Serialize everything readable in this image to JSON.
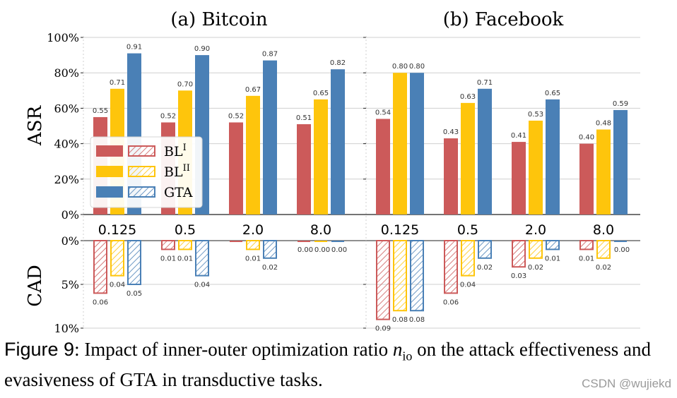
{
  "colors": {
    "bl1": "#cc5a5a",
    "bl2": "#fec50c",
    "gta": "#4a80b6",
    "grid": "#cfcfcf",
    "axis": "#222222"
  },
  "chart_data": [
    {
      "type": "bar",
      "panel": "asr",
      "title": "(a) Bitcoin",
      "ylabel": "ASR",
      "categories": [
        "0.125",
        "0.5",
        "2.0",
        "8.0"
      ],
      "ylim": [
        0,
        1
      ],
      "yticks": [
        "0%",
        "20%",
        "40%",
        "60%",
        "80%",
        "100%"
      ],
      "series": [
        {
          "name": "BL",
          "sup": "I",
          "values": [
            0.55,
            0.52,
            0.52,
            0.51
          ],
          "labels": [
            "0.55",
            "0.52",
            "0.52",
            "0.51"
          ]
        },
        {
          "name": "BL",
          "sup": "II",
          "values": [
            0.71,
            0.7,
            0.67,
            0.65
          ],
          "labels": [
            "0.71",
            "0.70",
            "0.67",
            "0.65"
          ]
        },
        {
          "name": "GTA",
          "sup": "",
          "values": [
            0.91,
            0.9,
            0.87,
            0.82
          ],
          "labels": [
            "0.91",
            "0.90",
            "0.87",
            "0.82"
          ]
        }
      ]
    },
    {
      "type": "bar",
      "panel": "asr",
      "title": "(b) Facebook",
      "ylabel": "",
      "categories": [
        "0.125",
        "0.5",
        "2.0",
        "8.0"
      ],
      "ylim": [
        0,
        1
      ],
      "series": [
        {
          "name": "BL",
          "sup": "I",
          "values": [
            0.54,
            0.43,
            0.41,
            0.4
          ],
          "labels": [
            "0.54",
            "0.43",
            "0.41",
            "0.40"
          ]
        },
        {
          "name": "BL",
          "sup": "II",
          "values": [
            0.8,
            0.63,
            0.53,
            0.48
          ],
          "labels": [
            "0.80",
            "0.63",
            "0.53",
            "0.48"
          ]
        },
        {
          "name": "GTA",
          "sup": "",
          "values": [
            0.8,
            0.71,
            0.65,
            0.59
          ],
          "labels": [
            "0.80",
            "0.71",
            "0.65",
            "0.59"
          ]
        }
      ]
    },
    {
      "type": "bar",
      "panel": "cad",
      "title": "(a) Bitcoin",
      "ylabel": "CAD",
      "categories": [
        "0.125",
        "0.5",
        "2.0",
        "8.0"
      ],
      "ylim": [
        0,
        0.1
      ],
      "yticks": [
        "0%",
        "5%",
        "10%"
      ],
      "inverted": true,
      "hatched": true,
      "series": [
        {
          "name": "BL",
          "sup": "I",
          "values": [
            0.06,
            0.01,
            0.0,
            0.0
          ],
          "labels": [
            "0.06",
            "0.01",
            "",
            "0.00"
          ]
        },
        {
          "name": "BL",
          "sup": "II",
          "values": [
            0.04,
            0.01,
            0.01,
            0.0
          ],
          "labels": [
            "0.04",
            "0.01",
            "0.01",
            "0.00"
          ]
        },
        {
          "name": "GTA",
          "sup": "",
          "values": [
            0.05,
            0.04,
            0.02,
            0.0
          ],
          "labels": [
            "0.05",
            "0.04",
            "0.02",
            "0.00"
          ]
        }
      ]
    },
    {
      "type": "bar",
      "panel": "cad",
      "title": "(b) Facebook",
      "ylabel": "",
      "categories": [
        "0.125",
        "0.5",
        "2.0",
        "8.0"
      ],
      "ylim": [
        0,
        0.1
      ],
      "inverted": true,
      "hatched": true,
      "series": [
        {
          "name": "BL",
          "sup": "I",
          "values": [
            0.09,
            0.06,
            0.03,
            0.01
          ],
          "labels": [
            "0.09",
            "0.06",
            "0.03",
            "0.01"
          ]
        },
        {
          "name": "BL",
          "sup": "II",
          "values": [
            0.08,
            0.04,
            0.02,
            0.02
          ],
          "labels": [
            "0.08",
            "0.04",
            "0.02",
            "0.02"
          ]
        },
        {
          "name": "GTA",
          "sup": "",
          "values": [
            0.08,
            0.02,
            0.01,
            0.0
          ],
          "labels": [
            "0.08",
            "0.02",
            "0.01",
            "0.00"
          ]
        }
      ]
    }
  ],
  "legend": {
    "entries": [
      {
        "name": "BL",
        "sup": "I",
        "color_key": "bl1"
      },
      {
        "name": "BL",
        "sup": "II",
        "color_key": "bl2"
      },
      {
        "name": "GTA",
        "sup": "",
        "color_key": "gta"
      }
    ]
  },
  "caption": {
    "figure_label": "Figure 9",
    "text_before_var": ": Impact of inner-outer optimization ratio ",
    "var": "n",
    "var_sub": "io",
    "text_after_var": " on the attack effectiveness and evasiveness of ",
    "gta": "GTA",
    "text_end": " in transductive tasks."
  },
  "watermark": "CSDN @wujiekd"
}
